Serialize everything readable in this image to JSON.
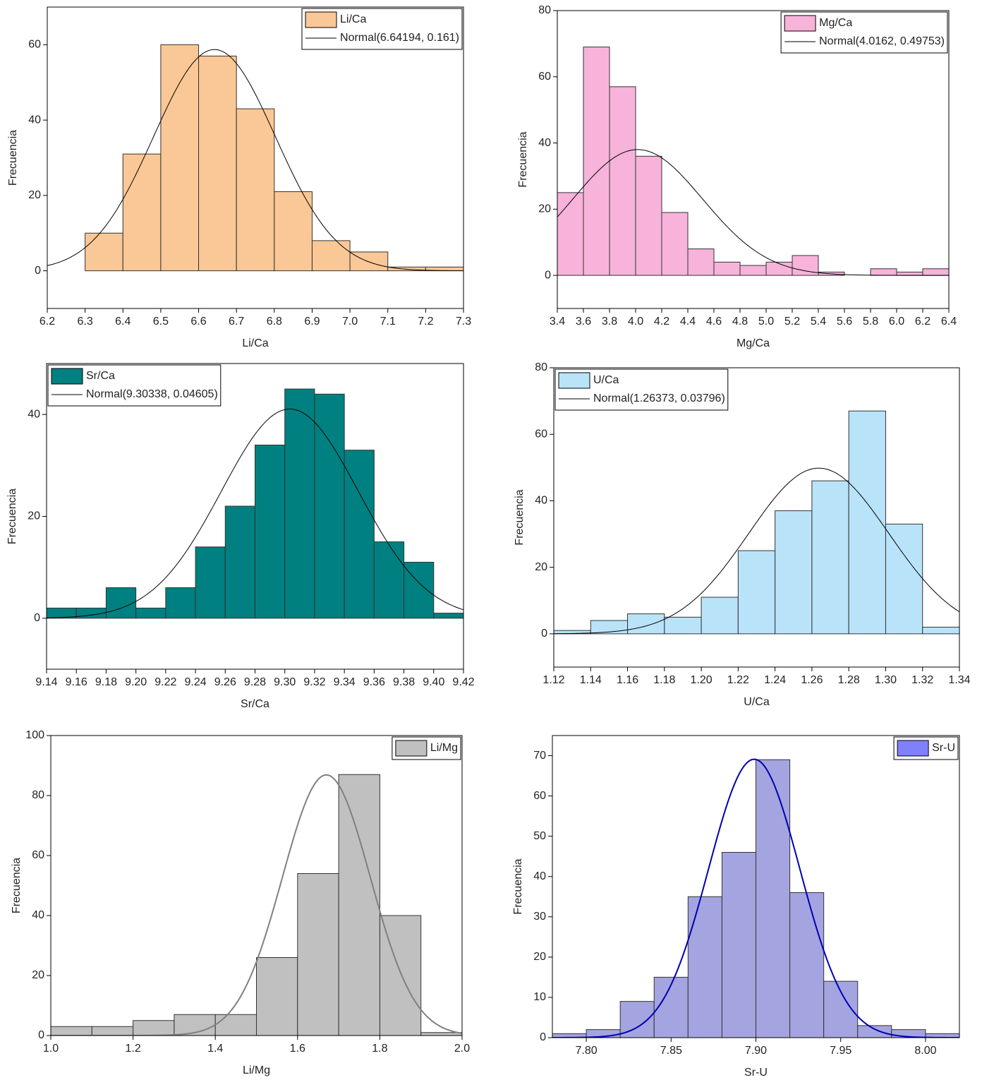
{
  "chart_data": [
    {
      "type": "histogram",
      "name": "Li/Ca",
      "x_label": "Li/Ca",
      "y_label": "Frecuencia",
      "color": "#f9c896",
      "bins": [
        6.2,
        6.3,
        6.4,
        6.5,
        6.6,
        6.7,
        6.8,
        6.9,
        7.0,
        7.1,
        7.2,
        7.3
      ],
      "values": [
        0,
        10,
        31,
        60,
        57,
        43,
        21,
        8,
        5,
        1,
        1
      ],
      "fit": {
        "name": "Normal(6.64194, 0.161)",
        "mean": 6.64194,
        "sd": 0.161,
        "color": "#000000"
      },
      "xlim": [
        6.2,
        7.3
      ],
      "ylim": [
        -10,
        70
      ],
      "xticks": [
        6.2,
        6.3,
        6.4,
        6.5,
        6.6,
        6.7,
        6.8,
        6.9,
        {
          "value": 7,
          "label": "7.0"
        },
        7.1,
        7.2,
        7.3
      ],
      "yticks": [
        0,
        20,
        40,
        60
      ],
      "legend": "top-right"
    },
    {
      "type": "histogram",
      "name": "Mg/Ca",
      "x_label": "Mg/Ca",
      "y_label": "Frecuencia",
      "color": "#f7b3d9",
      "bins": [
        3.4,
        3.6,
        3.8,
        4.0,
        4.2,
        4.4,
        4.6,
        4.8,
        5.0,
        5.2,
        5.4,
        5.6,
        5.8,
        6.0,
        6.2,
        6.4
      ],
      "values": [
        25,
        69,
        57,
        36,
        19,
        8,
        4,
        3,
        4,
        6,
        1,
        0,
        2,
        1,
        2
      ],
      "fit": {
        "name": "Normal(4.0162, 0.49753)",
        "mean": 4.0162,
        "sd": 0.49753,
        "color": "#000000"
      },
      "xlim": [
        3.4,
        6.4
      ],
      "ylim": [
        -10,
        80
      ],
      "xticks": [
        3.4,
        3.6,
        3.8,
        {
          "value": 4,
          "label": "4.0"
        },
        4.2,
        4.4,
        4.6,
        4.8,
        {
          "value": 5,
          "label": "5.0"
        },
        5.2,
        5.4,
        5.6,
        5.8,
        {
          "value": 6,
          "label": "6.0"
        },
        6.2,
        6.4
      ],
      "yticks": [
        0,
        20,
        40,
        60,
        80
      ],
      "legend": "top-right"
    },
    {
      "type": "histogram",
      "name": "Sr/Ca",
      "x_label": "Sr/Ca",
      "y_label": "Frecuencia",
      "color": "#008080",
      "bins": [
        9.14,
        9.16,
        9.18,
        9.2,
        9.22,
        9.24,
        9.26,
        9.28,
        9.3,
        9.32,
        9.34,
        9.36,
        9.38,
        9.4,
        9.42
      ],
      "values": [
        2,
        2,
        6,
        2,
        6,
        14,
        22,
        34,
        45,
        44,
        33,
        15,
        11,
        1
      ],
      "fit": {
        "name": "Normal(9.30338, 0.04605)",
        "mean": 9.30338,
        "sd": 0.04605,
        "color": "#000000"
      },
      "xlim": [
        9.14,
        9.42
      ],
      "ylim": [
        -10,
        50
      ],
      "xticks": [
        9.14,
        9.16,
        9.18,
        {
          "value": 9.2,
          "label": "9.20"
        },
        9.22,
        9.24,
        9.26,
        9.28,
        {
          "value": 9.3,
          "label": "9.30"
        },
        9.32,
        9.34,
        9.36,
        9.38,
        {
          "value": 9.4,
          "label": "9.40"
        },
        9.42
      ],
      "yticks": [
        0,
        20,
        40
      ],
      "legend": "top-left"
    },
    {
      "type": "histogram",
      "name": "U/Ca",
      "x_label": "U/Ca",
      "y_label": "Frecuencia",
      "color": "#b9e3f9",
      "bins": [
        1.12,
        1.14,
        1.16,
        1.18,
        1.2,
        1.22,
        1.24,
        1.26,
        1.28,
        1.3,
        1.32,
        1.34
      ],
      "values": [
        1,
        4,
        6,
        5,
        11,
        25,
        37,
        46,
        67,
        33,
        2
      ],
      "fit": {
        "name": "Normal(1.26373, 0.03796)",
        "mean": 1.26373,
        "sd": 0.03796,
        "color": "#000000"
      },
      "xlim": [
        1.12,
        1.34
      ],
      "ylim": [
        -10,
        80
      ],
      "xticks": [
        1.12,
        1.14,
        1.16,
        1.18,
        {
          "value": 1.2,
          "label": "1.20"
        },
        1.22,
        1.24,
        1.26,
        1.28,
        {
          "value": 1.3,
          "label": "1.30"
        },
        1.32,
        1.34
      ],
      "yticks": [
        0,
        20,
        40,
        60,
        80
      ],
      "legend": "top-left"
    },
    {
      "type": "histogram",
      "name": "Li/Mg",
      "x_label": "Li/Mg",
      "y_label": "Frecuencia",
      "color": "#c0c0c0",
      "bins": [
        1.0,
        1.1,
        1.2,
        1.3,
        1.4,
        1.5,
        1.6,
        1.7,
        1.8,
        1.9,
        2.0
      ],
      "values": [
        3,
        3,
        5,
        7,
        7,
        26,
        54,
        87,
        40,
        1
      ],
      "fit": {
        "mean": 1.67,
        "sd": 0.107,
        "color": "#808080"
      },
      "xlim": [
        1.0,
        2.0
      ],
      "ylim": [
        0,
        100
      ],
      "xticks": [
        {
          "value": 1,
          "label": "1.0"
        },
        1.2,
        1.4,
        1.6,
        1.8,
        {
          "value": 2,
          "label": "2.0"
        }
      ],
      "yticks": [
        0,
        20,
        40,
        60,
        80,
        100
      ],
      "legend": "top-right"
    },
    {
      "type": "histogram",
      "name": "Sr-U",
      "x_label": "Sr-U",
      "y_label": "Frecuencia",
      "color": "#a4a4e0",
      "legend_color": "#8080ff",
      "bins": [
        7.78,
        7.8,
        7.82,
        7.84,
        7.86,
        7.88,
        7.9,
        7.92,
        7.94,
        7.96,
        7.98,
        8.0,
        8.02
      ],
      "values": [
        1,
        2,
        9,
        15,
        35,
        46,
        69,
        36,
        14,
        3,
        2,
        1
      ],
      "fit": {
        "mean": 7.899,
        "sd": 0.0269,
        "color": "#0000b0"
      },
      "xlim": [
        7.78,
        8.02
      ],
      "ylim": [
        0,
        75
      ],
      "xticks": [
        {
          "value": 7.8,
          "label": "7.80"
        },
        7.85,
        {
          "value": 7.9,
          "label": "7.90"
        },
        7.95,
        {
          "value": 8,
          "label": "8.00"
        }
      ],
      "yticks": [
        0,
        10,
        20,
        30,
        40,
        50,
        60,
        70
      ],
      "legend": "top-right"
    }
  ]
}
